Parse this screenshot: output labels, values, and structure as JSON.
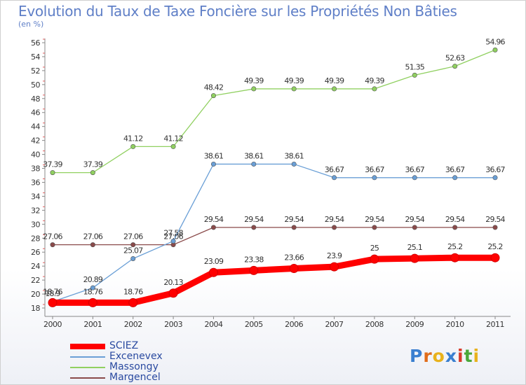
{
  "title": "Evolution du Taux de Taxe Foncière sur les Propriétés Non Bâties",
  "unit_label": "(en %)",
  "logo": {
    "letters": [
      "P",
      "r",
      "o",
      "x",
      "i",
      "t",
      "i"
    ],
    "colors": [
      "#3a7fd0",
      "#e06c1a",
      "#e8b21c",
      "#3a7fd0",
      "#d83b2b",
      "#4aa83a",
      "#e8b21c"
    ]
  },
  "chart_data": {
    "type": "line",
    "x": [
      "2000",
      "2001",
      "2002",
      "2003",
      "2004",
      "2005",
      "2006",
      "2007",
      "2008",
      "2009",
      "2010",
      "2011"
    ],
    "ylim": [
      18,
      56
    ],
    "yticks": [
      "18",
      "20",
      "22",
      "24",
      "26",
      "28",
      "30",
      "32",
      "34",
      "36",
      "38",
      "40",
      "42",
      "44",
      "46",
      "48",
      "50",
      "52",
      "54",
      "56"
    ],
    "grid": false,
    "legend_position": "bottom-left",
    "series": [
      {
        "name": "SCIEZ",
        "color": "#ff0000",
        "values": [
          18.76,
          18.76,
          18.76,
          20.13,
          23.09,
          23.38,
          23.66,
          23.9,
          25,
          25.1,
          25.2,
          25.2
        ],
        "labels": [
          "18.76",
          "18.76",
          "18.76",
          "20.13",
          "23.09",
          "23.38",
          "23.66",
          "23.9",
          "25",
          "25.1",
          "25.2",
          "25.2"
        ]
      },
      {
        "name": "Excenevex",
        "color": "#6a9fd6",
        "values": [
          18.9,
          20.89,
          25.07,
          27.58,
          38.61,
          38.61,
          38.61,
          36.67,
          36.67,
          36.67,
          36.67,
          36.67
        ],
        "labels": [
          "18.9",
          "20.89",
          "25.07",
          "27.58",
          "38.61",
          "38.61",
          "38.61",
          "36.67",
          "36.67",
          "36.67",
          "36.67",
          "36.67"
        ]
      },
      {
        "name": "Massongy",
        "color": "#90d060",
        "values": [
          37.39,
          37.39,
          41.12,
          41.12,
          48.42,
          49.39,
          49.39,
          49.39,
          49.39,
          51.35,
          52.63,
          54.96
        ],
        "labels": [
          "37.39",
          "37.39",
          "41.12",
          "41.12",
          "48.42",
          "49.39",
          "49.39",
          "49.39",
          "49.39",
          "51.35",
          "52.63",
          "54.96"
        ]
      },
      {
        "name": "Margencel",
        "color": "#8a4a4a",
        "values": [
          27.06,
          27.06,
          27.06,
          27.06,
          29.54,
          29.54,
          29.54,
          29.54,
          29.54,
          29.54,
          29.54,
          29.54
        ],
        "labels": [
          "27.06",
          "27.06",
          "27.06",
          "27.06",
          "29.54",
          "29.54",
          "29.54",
          "29.54",
          "29.54",
          "29.54",
          "29.54",
          "29.54"
        ]
      }
    ]
  }
}
